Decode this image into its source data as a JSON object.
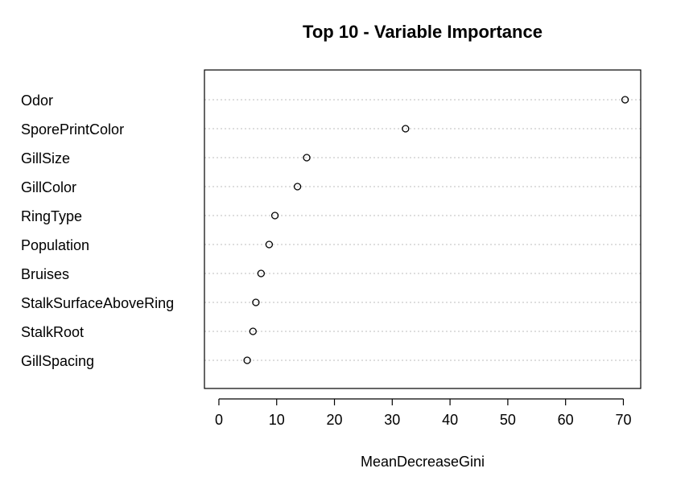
{
  "chart_data": {
    "type": "scatter",
    "title": "Top 10 - Variable Importance",
    "xlabel": "MeanDecreaseGini",
    "ylabel": "",
    "xlim": [
      -2.5,
      73
    ],
    "xticks": [
      0,
      10,
      20,
      30,
      40,
      50,
      60,
      70
    ],
    "grid": "horizontal dotted",
    "categories": [
      "Odor",
      "SporePrintColor",
      "GillSize",
      "GillColor",
      "RingType",
      "Population",
      "Bruises",
      "StalkSurfaceAboveRing",
      "StalkRoot",
      "GillSpacing"
    ],
    "values": [
      70.3,
      32.3,
      15.2,
      13.6,
      9.7,
      8.7,
      7.3,
      6.4,
      5.9,
      4.9
    ]
  }
}
